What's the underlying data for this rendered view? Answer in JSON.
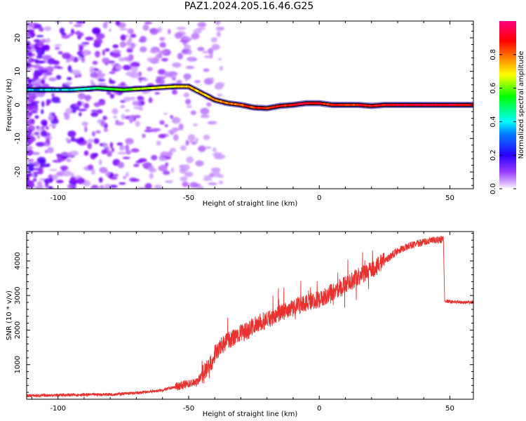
{
  "title": "PAZ1.2024.205.16.46.G25",
  "chart_data": [
    {
      "type": "heatmap",
      "title": "PAZ1.2024.205.16.46.G25",
      "xlabel": "Height of straight line (km)",
      "ylabel": "Frequency (Hz)",
      "xlim": [
        -112,
        59
      ],
      "ylim": [
        -25,
        25
      ],
      "xticks": [
        -100,
        -50,
        0,
        50
      ],
      "yticks": [
        -20,
        -10,
        0,
        10,
        20
      ],
      "grid": false,
      "colorbar": {
        "label": "Normalized spectral amplitude",
        "range": [
          0.0,
          1.0
        ],
        "ticks": [
          "0.0",
          "0.2",
          "0.4",
          "0.6",
          "0.8"
        ],
        "colormap": "gist_rainbow_r",
        "colors": [
          "#ffffff",
          "#8000ff",
          "#0000ff",
          "#00ffff",
          "#00ff00",
          "#ffff00",
          "#ff8000",
          "#ff0000",
          "#ff0080"
        ]
      },
      "ridge": {
        "x": [
          -112,
          -95,
          -85,
          -75,
          -65,
          -55,
          -50,
          -45,
          -40,
          -35,
          -30,
          -25,
          -20,
          -15,
          -10,
          -5,
          0,
          5,
          10,
          15,
          20,
          25,
          30,
          35,
          40,
          45,
          50,
          55,
          59
        ],
        "frequency": [
          4.5,
          4.5,
          5,
          4.5,
          5,
          5.5,
          5.5,
          3.5,
          1.5,
          0.5,
          0,
          -0.8,
          -1,
          -0.3,
          0,
          0.5,
          0.5,
          0,
          0,
          0,
          -0.3,
          0,
          0,
          0,
          0,
          0,
          0,
          0,
          0
        ],
        "amplitude": [
          0.3,
          0.35,
          0.45,
          0.6,
          0.65,
          0.7,
          0.72,
          0.74,
          0.76,
          0.78,
          0.82,
          0.86,
          0.88,
          0.85,
          0.9,
          0.92,
          0.88,
          0.85,
          0.85,
          0.86,
          0.88,
          0.9,
          0.92,
          0.92,
          0.92,
          0.92,
          0.92,
          0.92,
          0.92
        ]
      }
    },
    {
      "type": "line",
      "xlabel": "Height of straight line (km)",
      "ylabel": "SNR (10 * v/v)",
      "xlim": [
        -112,
        59
      ],
      "ylim": [
        0,
        4850
      ],
      "xticks": [
        -100,
        -50,
        0,
        50
      ],
      "yticks": [
        1000,
        2000,
        3000,
        4000
      ],
      "grid": false,
      "color": "#e8302e",
      "series": [
        {
          "x": [
            -112,
            -100,
            -90,
            -80,
            -70,
            -60,
            -55,
            -50,
            -47,
            -45,
            -43,
            -41,
            -40,
            -38,
            -35,
            -32,
            -30,
            -27,
            -25,
            -20,
            -15,
            -10,
            -5,
            0,
            5,
            10,
            15,
            20,
            25,
            30,
            35,
            40,
            45,
            47.5,
            48,
            50,
            55,
            59
          ],
          "y": [
            100,
            120,
            130,
            140,
            180,
            260,
            360,
            450,
            480,
            700,
            900,
            1100,
            1300,
            1500,
            1700,
            1800,
            1900,
            2000,
            2150,
            2300,
            2500,
            2650,
            2800,
            2900,
            3100,
            3300,
            3550,
            3750,
            4000,
            4300,
            4450,
            4550,
            4600,
            4640,
            2850,
            2820,
            2800,
            2800
          ]
        }
      ]
    }
  ]
}
